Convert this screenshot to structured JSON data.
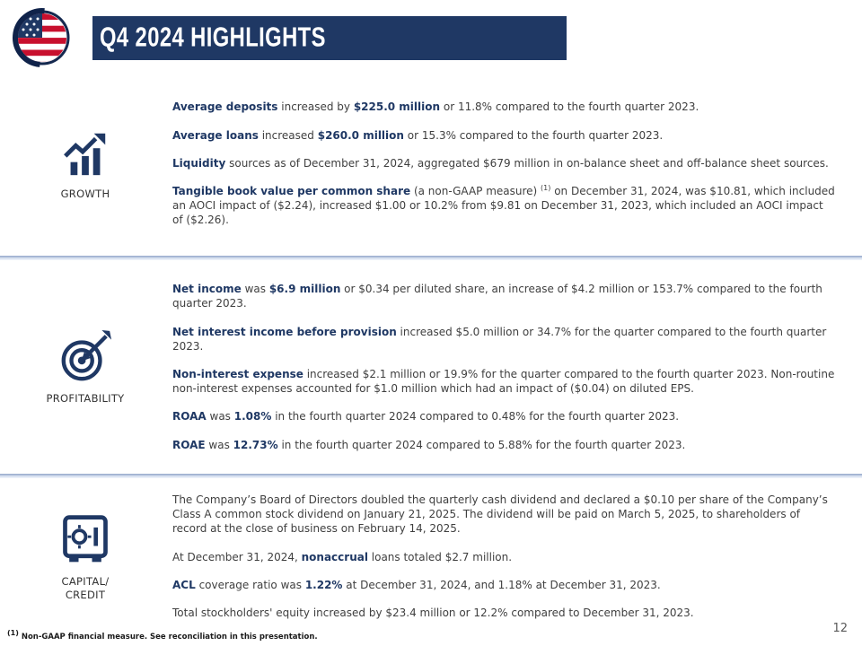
{
  "slide": {
    "title": "Q4 2024 HIGHLIGHTS",
    "page_number": "12",
    "footnote_sup": "(1)",
    "footnote_text": " Non-GAAP financial measure. See reconciliation in this presentation."
  },
  "colors": {
    "navy": "#1F3864",
    "body_text": "#3F3F3F"
  },
  "logo": {
    "name": "us-flag-roundel-logo"
  },
  "sections": [
    {
      "id": "growth",
      "icon": "growth-chart-icon",
      "label_lines": [
        "GROWTH"
      ],
      "paragraphs": [
        [
          {
            "t": "Average deposits",
            "b": true
          },
          {
            "t": " increased by "
          },
          {
            "t": "$225.0 million",
            "b": true
          },
          {
            "t": " or 11.8% compared to the fourth quarter 2023."
          }
        ],
        [
          {
            "t": "Average loans",
            "b": true
          },
          {
            "t": " increased "
          },
          {
            "t": "$260.0 million",
            "b": true
          },
          {
            "t": " or 15.3% compared to the fourth quarter 2023."
          }
        ],
        [
          {
            "t": "Liquidity",
            "b": true
          },
          {
            "t": " sources as of December 31, 2024, aggregated $679 million in on-balance sheet and off-balance sheet sources."
          }
        ],
        [
          {
            "t": "Tangible book value per common share",
            "b": true
          },
          {
            "t": " (a non-GAAP measure) "
          },
          {
            "t": "(1)",
            "sup": true
          },
          {
            "t": " on December 31, 2024, was $10.81, which included an AOCI impact of ($2.24), increased $1.00 or 10.2% from $9.81 on December 31, 2023, which included an AOCI impact of ($2.26)."
          }
        ]
      ]
    },
    {
      "id": "profitability",
      "icon": "target-bullseye-icon",
      "label_lines": [
        "PROFITABILITY"
      ],
      "paragraphs": [
        [
          {
            "t": "Net income",
            "b": true
          },
          {
            "t": " was "
          },
          {
            "t": "$6.9 million",
            "b": true
          },
          {
            "t": " or $0.34 per diluted share, an increase of $4.2 million or 153.7% compared to the fourth quarter 2023."
          }
        ],
        [
          {
            "t": "Net interest income before provision",
            "b": true
          },
          {
            "t": " increased $5.0 million or 34.7% for the quarter compared to the fourth quarter 2023."
          }
        ],
        [
          {
            "t": "Non-interest expense",
            "b": true
          },
          {
            "t": " increased $2.1 million or 19.9% for the quarter compared to the fourth quarter 2023. Non-routine non-interest expenses accounted for $1.0 million which had an impact of ($0.04) on diluted EPS."
          }
        ],
        [
          {
            "t": "ROAA",
            "b": true
          },
          {
            "t": " was "
          },
          {
            "t": "1.08%",
            "b": true
          },
          {
            "t": " in the fourth quarter 2024 compared to 0.48% for the fourth quarter 2023."
          }
        ],
        [
          {
            "t": "ROAE",
            "b": true
          },
          {
            "t": " was "
          },
          {
            "t": "12.73%",
            "b": true
          },
          {
            "t": " in the fourth quarter 2024 compared to 5.88% for the fourth quarter 2023."
          }
        ]
      ]
    },
    {
      "id": "capital",
      "icon": "safe-vault-icon",
      "label_lines": [
        "CAPITAL/",
        "CREDIT"
      ],
      "paragraphs": [
        [
          {
            "t": "The Company’s Board of Directors doubled the quarterly cash dividend and declared a $0.10 per share of the Company’s Class A common stock dividend on January 21, 2025. The dividend will be paid on March 5, 2025, to shareholders of record at the close of business on February 14, 2025."
          }
        ],
        [
          {
            "t": "At December 31, 2024, "
          },
          {
            "t": "nonaccrual",
            "b": true
          },
          {
            "t": " loans totaled $2.7 million."
          }
        ],
        [
          {
            "t": "ACL",
            "b": true
          },
          {
            "t": " coverage ratio was "
          },
          {
            "t": "1.22%",
            "b": true
          },
          {
            "t": " at December 31, 2024, and 1.18% at December 31, 2023."
          }
        ],
        [
          {
            "t": "Total stockholders' equity increased by $23.4 million or 12.2% compared to December 31, 2023."
          }
        ]
      ]
    }
  ]
}
